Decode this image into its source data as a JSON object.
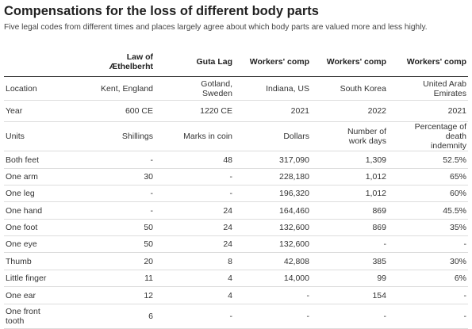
{
  "title": "Compensations for the loss of different body parts",
  "subtitle": "Five legal codes from different times and places largely agree about which body parts are valued more and less highly.",
  "table": {
    "columns": [
      "",
      "Law of Æthelberht",
      "Guta Lag",
      "Workers' comp",
      "Workers' comp",
      "Workers' comp"
    ],
    "rows": [
      [
        "Location",
        "Kent, England",
        "Gotland, Sweden",
        "Indiana, US",
        "South Korea",
        "United Arab Emirates"
      ],
      [
        "Year",
        "600 CE",
        "1220 CE",
        "2021",
        "2022",
        "2021"
      ],
      [
        "Units",
        "Shillings",
        "Marks in coin",
        "Dollars",
        "Number of work days",
        "Percentage of death indemnity"
      ],
      [
        "Both feet",
        "-",
        "48",
        "317,090",
        "1,309",
        "52.5%"
      ],
      [
        "One arm",
        "30",
        "-",
        "228,180",
        "1,012",
        "65%"
      ],
      [
        "One leg",
        "-",
        "-",
        "196,320",
        "1,012",
        "60%"
      ],
      [
        "One hand",
        "-",
        "24",
        "164,460",
        "869",
        "45.5%"
      ],
      [
        "One foot",
        "50",
        "24",
        "132,600",
        "869",
        "35%"
      ],
      [
        "One eye",
        "50",
        "24",
        "132,600",
        "-",
        "-"
      ],
      [
        "Thumb",
        "20",
        "8",
        "42,808",
        "385",
        "30%"
      ],
      [
        "Little finger",
        "11",
        "4",
        "14,000",
        "99",
        "6%"
      ],
      [
        "One ear",
        "12",
        "4",
        "-",
        "154",
        "-"
      ],
      [
        "One front tooth",
        "6",
        "-",
        "-",
        "-",
        "-"
      ]
    ]
  }
}
